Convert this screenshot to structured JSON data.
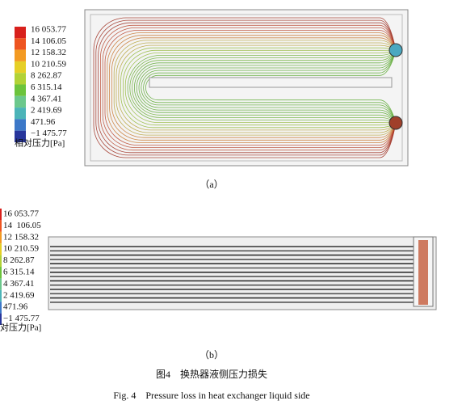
{
  "figure_a": {
    "legend": {
      "labels": [
        "16 053.77",
        "14 106.05",
        "12 158.32",
        "10 210.59",
        "8 262.87",
        "6 315.14",
        "4 367.41",
        "2 419.69",
        "471.96",
        "−1 475.77"
      ],
      "colors": [
        "#d8201c",
        "#ee5420",
        "#f39a22",
        "#e6cf26",
        "#b2d236",
        "#6cc43c",
        "#6cc88c",
        "#4cb4b8",
        "#3c78c8",
        "#28369c"
      ],
      "title": "相对压力[Pa]"
    },
    "caption": "（a）"
  },
  "figure_b": {
    "legend": {
      "labels": [
        "16 053.77",
        "14  106.05",
        "12 158.32",
        "10 210.59",
        "8 262.87",
        "6 315.14",
        "4 367.41",
        "2 419.69",
        "471.96",
        "−1 475.77"
      ],
      "title": "对压力[Pa]"
    },
    "caption": "（b）"
  },
  "caption_zh": "图4　换热器液侧压力损失",
  "caption_en": "Fig. 4　Pressure loss in heat exchanger liquid side"
}
